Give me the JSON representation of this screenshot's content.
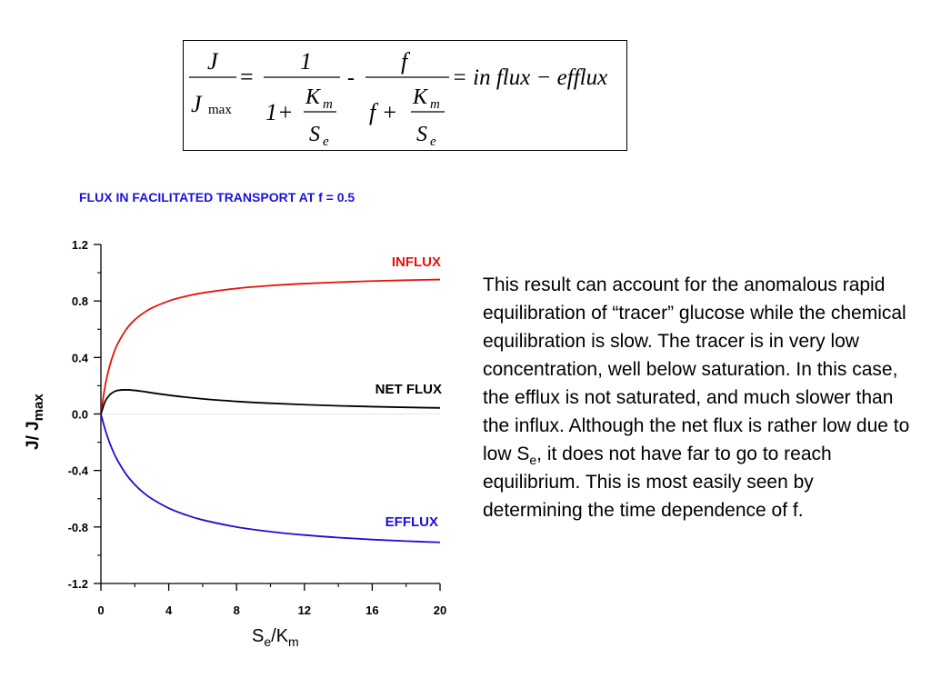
{
  "equation": {
    "J": "J",
    "J_max_base": "J",
    "J_max_sub": "max",
    "equals": "=",
    "one": "1",
    "one_plus": "1+",
    "K": "K",
    "m": "m",
    "S": "S",
    "e": "e",
    "minus": "-",
    "f": "f",
    "f_plus": "f +",
    "rhs": "= in flux − efflux"
  },
  "colors": {
    "influx": "#e8120c",
    "efflux": "#1c0fd6",
    "net_flux": "#000000",
    "title": "#1a14d8",
    "zero_line": "#e6e6e6"
  },
  "chart_data": {
    "type": "line",
    "title": "FLUX IN FACILITATED TRANSPORT AT f = 0.5",
    "xlabel": {
      "base": "S",
      "sub1": "e",
      "mid": "/K",
      "sub2": "m"
    },
    "ylabel": {
      "base": "J/ J",
      "sub": "max"
    },
    "xlim": [
      0,
      20
    ],
    "ylim": [
      -1.2,
      1.2
    ],
    "x_ticks": [
      "0",
      "4",
      "8",
      "12",
      "16",
      "20"
    ],
    "y_ticks": [
      "1.2",
      "0.8",
      "0.4",
      "0.0",
      "-0.4",
      "-0.8",
      "-1.2"
    ],
    "grid": false,
    "x": [
      0,
      0.25,
      0.5,
      0.75,
      1,
      1.5,
      2,
      2.5,
      3,
      4,
      5,
      6,
      8,
      10,
      12,
      14,
      16,
      18,
      20
    ],
    "series": [
      {
        "name": "INFLUX",
        "key": "influx",
        "values": [
          0,
          0.2,
          0.333,
          0.429,
          0.5,
          0.6,
          0.667,
          0.714,
          0.75,
          0.8,
          0.833,
          0.857,
          0.889,
          0.909,
          0.923,
          0.933,
          0.941,
          0.947,
          0.952
        ]
      },
      {
        "name": "EFFLUX",
        "key": "efflux",
        "values": [
          0,
          -0.111,
          -0.2,
          -0.273,
          -0.333,
          -0.429,
          -0.5,
          -0.556,
          -0.6,
          -0.667,
          -0.714,
          -0.75,
          -0.8,
          -0.833,
          -0.857,
          -0.875,
          -0.889,
          -0.9,
          -0.909
        ]
      },
      {
        "name": "NET FLUX",
        "key": "net_flux",
        "values": [
          0,
          0.089,
          0.133,
          0.156,
          0.167,
          0.171,
          0.167,
          0.159,
          0.15,
          0.133,
          0.119,
          0.107,
          0.089,
          0.076,
          0.066,
          0.058,
          0.052,
          0.047,
          0.043
        ]
      }
    ]
  },
  "description": {
    "part1": "This result can account for the anomalous rapid equilibration of “tracer” glucose while the chemical equilibration is slow. The tracer is in very low concentration, well below saturation. In this case, the efflux is not saturated, and much slower than the influx. Although the net flux is rather low due to low S",
    "sub": "e",
    "part2": ", it does not have far to go to reach equilibrium. This is most easily seen by determining the time dependence of f."
  }
}
